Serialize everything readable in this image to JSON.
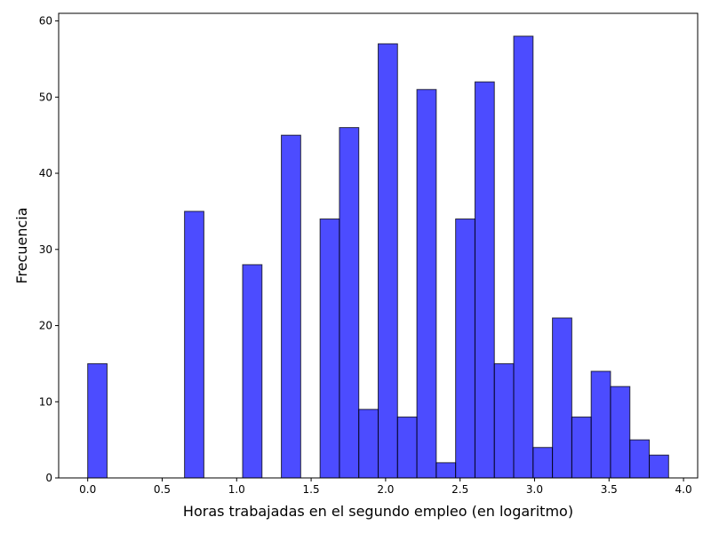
{
  "chart_data": {
    "type": "bar",
    "title": "",
    "xlabel": "Horas trabajadas en el segundo empleo (en logaritmo)",
    "ylabel": "Frecuencia",
    "xlim": [
      -0.195,
      4.095
    ],
    "ylim": [
      0,
      61
    ],
    "xticks": [
      0.0,
      0.5,
      1.0,
      1.5,
      2.0,
      2.5,
      3.0,
      3.5,
      4.0
    ],
    "xtick_labels": [
      "0.0",
      "0.5",
      "1.0",
      "1.5",
      "2.0",
      "2.5",
      "3.0",
      "3.5",
      "4.0"
    ],
    "yticks": [
      0,
      10,
      20,
      30,
      40,
      50,
      60
    ],
    "ytick_labels": [
      "0",
      "10",
      "20",
      "30",
      "40",
      "50",
      "60"
    ],
    "bin_start": 0.0,
    "bin_width": 0.13,
    "bar_color": "#0000ff",
    "bar_opacity": 0.7,
    "edge_color": "#000000",
    "values": [
      15,
      0,
      0,
      0,
      0,
      35,
      0,
      0,
      28,
      0,
      45,
      0,
      34,
      46,
      9,
      57,
      8,
      51,
      2,
      34,
      52,
      15,
      58,
      4,
      21,
      8,
      14,
      12,
      5,
      3
    ],
    "grid": false,
    "legend": "none"
  }
}
